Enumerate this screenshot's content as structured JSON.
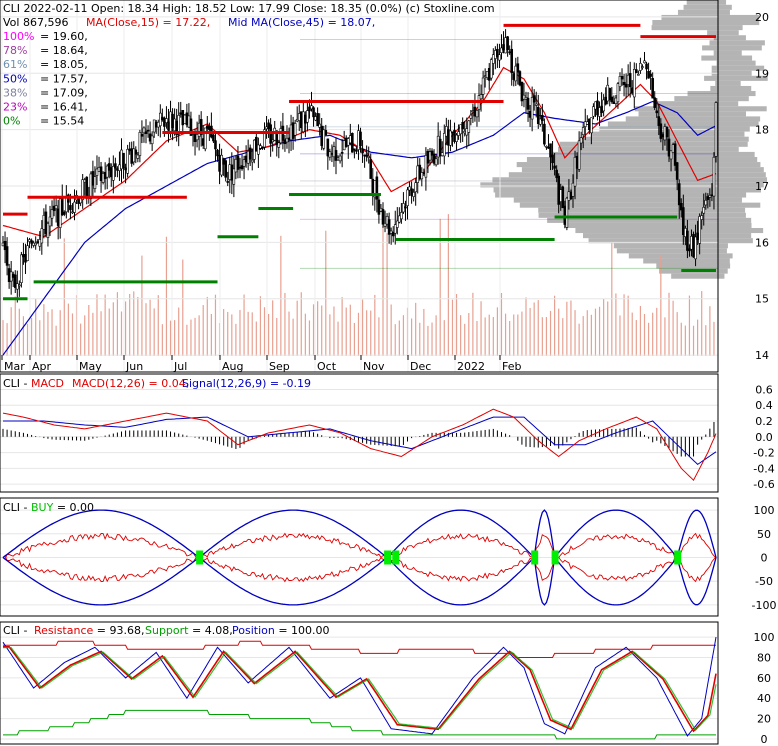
{
  "header": {
    "line1": "CLI  2022-02-11 Open: 18.34  High: 18.52  Low: 17.99  Close: 18.35 (0.0%)  (c) Stoxline.com",
    "vol": "Vol 867,596",
    "ma_label": "MA(Close,15) = 17.22,",
    "midma_label": "Mid MA(Close,45) = 18.07,"
  },
  "fib_levels": [
    {
      "pct": "100%",
      "value": "= 19.60,",
      "color": "#ff00ff",
      "price": 19.6
    },
    {
      "pct": "78%",
      "value": "= 18.64,",
      "color": "#a040a0",
      "price": 18.64
    },
    {
      "pct": "61%",
      "value": "= 18.05,",
      "color": "#6e8fb0",
      "price": 18.05
    },
    {
      "pct": "50%",
      "value": "= 17.57,",
      "color": "#0000c0",
      "price": 17.57
    },
    {
      "pct": "38%",
      "value": "= 17.09,",
      "color": "#8080a0",
      "price": 17.09
    },
    {
      "pct": "23%",
      "value": "= 16.41,",
      "color": "#c000c0",
      "price": 16.41
    },
    {
      "pct": "0%",
      "value": "= 15.54",
      "color": "#008000",
      "price": 15.54
    }
  ],
  "colors": {
    "candle": "#000000",
    "ma15": "#e00000",
    "ma45": "#0000c0",
    "volume": "#e8a090",
    "resistance": "#e00000",
    "support": "#008000",
    "volume_profile": "#b4b4b4",
    "buy_marker": "#00ee00"
  },
  "chart_data": [
    {
      "type": "candlestick",
      "title": "CLI",
      "x_ticks": [
        "Mar",
        "Apr",
        "May",
        "Jun",
        "Jul",
        "Aug",
        "Sep",
        "Oct",
        "Nov",
        "Dec",
        "2022",
        "Feb"
      ],
      "y_ticks": [
        14,
        15,
        16,
        17,
        18,
        19,
        20
      ],
      "ylim": [
        13.7,
        20.3
      ],
      "date_range": [
        "2021-02-26",
        "2022-02-11"
      ],
      "last": {
        "date": "2022-02-11",
        "open": 18.34,
        "high": 18.52,
        "low": 17.99,
        "close": 18.35
      },
      "close_path": [
        [
          0,
          16.0
        ],
        [
          5,
          15.2
        ],
        [
          15,
          16.1
        ],
        [
          35,
          16.8
        ],
        [
          60,
          17.5
        ],
        [
          80,
          18.2
        ],
        [
          100,
          17.9
        ],
        [
          110,
          17.2
        ],
        [
          125,
          17.8
        ],
        [
          140,
          18.0
        ],
        [
          150,
          18.3
        ],
        [
          160,
          17.6
        ],
        [
          175,
          17.8
        ],
        [
          185,
          16.6
        ],
        [
          190,
          16.2
        ],
        [
          200,
          17.0
        ],
        [
          215,
          17.8
        ],
        [
          230,
          18.3
        ],
        [
          240,
          19.2
        ],
        [
          245,
          19.6
        ],
        [
          255,
          18.6
        ],
        [
          262,
          18.2
        ],
        [
          268,
          17.5
        ],
        [
          275,
          16.4
        ],
        [
          282,
          17.7
        ],
        [
          290,
          18.4
        ],
        [
          300,
          18.7
        ],
        [
          310,
          18.9
        ],
        [
          315,
          19.3
        ],
        [
          320,
          18.2
        ],
        [
          328,
          17.6
        ],
        [
          333,
          16.2
        ],
        [
          338,
          15.9
        ],
        [
          343,
          16.6
        ],
        [
          347,
          16.9
        ],
        [
          349,
          18.35
        ]
      ],
      "ma15": [
        [
          0,
          16.3
        ],
        [
          20,
          16.1
        ],
        [
          40,
          16.6
        ],
        [
          60,
          17.1
        ],
        [
          80,
          17.8
        ],
        [
          100,
          18.1
        ],
        [
          115,
          17.6
        ],
        [
          130,
          17.7
        ],
        [
          150,
          18.0
        ],
        [
          165,
          17.9
        ],
        [
          178,
          17.6
        ],
        [
          190,
          16.9
        ],
        [
          205,
          17.2
        ],
        [
          220,
          17.9
        ],
        [
          235,
          18.5
        ],
        [
          245,
          19.1
        ],
        [
          255,
          18.9
        ],
        [
          265,
          18.3
        ],
        [
          275,
          17.5
        ],
        [
          285,
          17.9
        ],
        [
          300,
          18.4
        ],
        [
          312,
          18.8
        ],
        [
          320,
          18.5
        ],
        [
          330,
          17.8
        ],
        [
          340,
          17.1
        ],
        [
          349,
          17.22
        ]
      ],
      "ma45": [
        [
          0,
          14.0
        ],
        [
          20,
          15.0
        ],
        [
          40,
          16.0
        ],
        [
          60,
          16.6
        ],
        [
          80,
          17.0
        ],
        [
          100,
          17.4
        ],
        [
          120,
          17.6
        ],
        [
          140,
          17.8
        ],
        [
          160,
          17.9
        ],
        [
          180,
          17.6
        ],
        [
          200,
          17.5
        ],
        [
          220,
          17.6
        ],
        [
          240,
          17.9
        ],
        [
          255,
          18.3
        ],
        [
          270,
          18.2
        ],
        [
          290,
          18.1
        ],
        [
          305,
          18.3
        ],
        [
          318,
          18.5
        ],
        [
          330,
          18.3
        ],
        [
          340,
          17.9
        ],
        [
          349,
          18.07
        ]
      ],
      "resistance_levels": [
        {
          "x0": 0,
          "x1": 12,
          "price": 16.5
        },
        {
          "x0": 12,
          "x1": 90,
          "price": 16.8
        },
        {
          "x0": 78,
          "x1": 140,
          "price": 17.95
        },
        {
          "x0": 140,
          "x1": 245,
          "price": 18.5
        },
        {
          "x0": 245,
          "x1": 312,
          "price": 19.85
        },
        {
          "x0": 312,
          "x1": 349,
          "price": 19.65
        }
      ],
      "support_levels": [
        {
          "x0": 0,
          "x1": 12,
          "price": 15.0
        },
        {
          "x0": 15,
          "x1": 105,
          "price": 15.3
        },
        {
          "x0": 105,
          "x1": 125,
          "price": 16.1
        },
        {
          "x0": 125,
          "x1": 142,
          "price": 16.6
        },
        {
          "x0": 140,
          "x1": 185,
          "price": 16.85
        },
        {
          "x0": 192,
          "x1": 270,
          "price": 16.05
        },
        {
          "x0": 270,
          "x1": 330,
          "price": 16.45
        },
        {
          "x0": 332,
          "x1": 349,
          "price": 15.5
        }
      ]
    },
    {
      "type": "line",
      "title": "MACD",
      "label": "CLI - MACD",
      "series_labels": [
        "MACD(12,26) = 0.04,",
        "Signal(12,26,9) = -0.19"
      ],
      "y_ticks": [
        0.6,
        0.4,
        0.2,
        0.0,
        -0.2,
        -0.4,
        -0.6
      ],
      "ylim": [
        -0.7,
        0.72
      ],
      "macd": [
        [
          0,
          0.3
        ],
        [
          10,
          0.25
        ],
        [
          25,
          0.15
        ],
        [
          40,
          0.1
        ],
        [
          60,
          0.2
        ],
        [
          80,
          0.3
        ],
        [
          100,
          0.2
        ],
        [
          115,
          -0.1
        ],
        [
          130,
          0.05
        ],
        [
          150,
          0.15
        ],
        [
          165,
          0.05
        ],
        [
          180,
          -0.15
        ],
        [
          195,
          -0.25
        ],
        [
          210,
          0.0
        ],
        [
          225,
          0.15
        ],
        [
          240,
          0.35
        ],
        [
          250,
          0.25
        ],
        [
          262,
          -0.05
        ],
        [
          272,
          -0.25
        ],
        [
          282,
          -0.05
        ],
        [
          295,
          0.1
        ],
        [
          310,
          0.25
        ],
        [
          320,
          0.1
        ],
        [
          332,
          -0.4
        ],
        [
          338,
          -0.55
        ],
        [
          345,
          -0.2
        ],
        [
          349,
          0.04
        ]
      ],
      "signal": [
        [
          0,
          0.2
        ],
        [
          20,
          0.2
        ],
        [
          40,
          0.15
        ],
        [
          60,
          0.12
        ],
        [
          80,
          0.22
        ],
        [
          100,
          0.25
        ],
        [
          120,
          0.0
        ],
        [
          140,
          0.05
        ],
        [
          160,
          0.1
        ],
        [
          180,
          -0.05
        ],
        [
          200,
          -0.15
        ],
        [
          220,
          0.05
        ],
        [
          240,
          0.25
        ],
        [
          255,
          0.25
        ],
        [
          270,
          -0.1
        ],
        [
          285,
          -0.1
        ],
        [
          300,
          0.05
        ],
        [
          318,
          0.2
        ],
        [
          330,
          -0.1
        ],
        [
          340,
          -0.35
        ],
        [
          349,
          -0.19
        ]
      ]
    },
    {
      "type": "line",
      "title": "BUY",
      "label": "CLI - BUY = 0.00",
      "y_ticks": [
        100,
        50,
        0,
        -50,
        -100
      ],
      "ylim": [
        -115,
        115
      ],
      "buy_markers_x": [
        96,
        188,
        192,
        260,
        270,
        330
      ]
    },
    {
      "type": "line",
      "title": "Resistance / Support / Position",
      "series_labels": [
        "Resistance = 93.68,",
        "Support = 4.08,",
        "Position = 100.00"
      ],
      "y_ticks": [
        100,
        80,
        60,
        40,
        20,
        0
      ],
      "ylim": [
        -3,
        107
      ],
      "resistance": [
        [
          0,
          92
        ],
        [
          40,
          95
        ],
        [
          60,
          90
        ],
        [
          90,
          88
        ],
        [
          120,
          95
        ],
        [
          150,
          90
        ],
        [
          180,
          85
        ],
        [
          220,
          88
        ],
        [
          260,
          80
        ],
        [
          300,
          88
        ],
        [
          349,
          93.68
        ]
      ],
      "support": [
        [
          0,
          4
        ],
        [
          30,
          12
        ],
        [
          60,
          26
        ],
        [
          90,
          28
        ],
        [
          120,
          22
        ],
        [
          150,
          18
        ],
        [
          175,
          8
        ],
        [
          200,
          3
        ],
        [
          240,
          5
        ],
        [
          280,
          1
        ],
        [
          320,
          2
        ],
        [
          349,
          4.08
        ]
      ],
      "position": [
        [
          0,
          95
        ],
        [
          15,
          50
        ],
        [
          30,
          75
        ],
        [
          45,
          90
        ],
        [
          60,
          60
        ],
        [
          75,
          85
        ],
        [
          90,
          40
        ],
        [
          105,
          90
        ],
        [
          120,
          55
        ],
        [
          140,
          90
        ],
        [
          160,
          40
        ],
        [
          175,
          60
        ],
        [
          190,
          10
        ],
        [
          210,
          5
        ],
        [
          230,
          60
        ],
        [
          245,
          90
        ],
        [
          255,
          70
        ],
        [
          265,
          15
        ],
        [
          275,
          5
        ],
        [
          290,
          70
        ],
        [
          305,
          90
        ],
        [
          320,
          60
        ],
        [
          335,
          3
        ],
        [
          342,
          20
        ],
        [
          349,
          100
        ]
      ]
    }
  ]
}
